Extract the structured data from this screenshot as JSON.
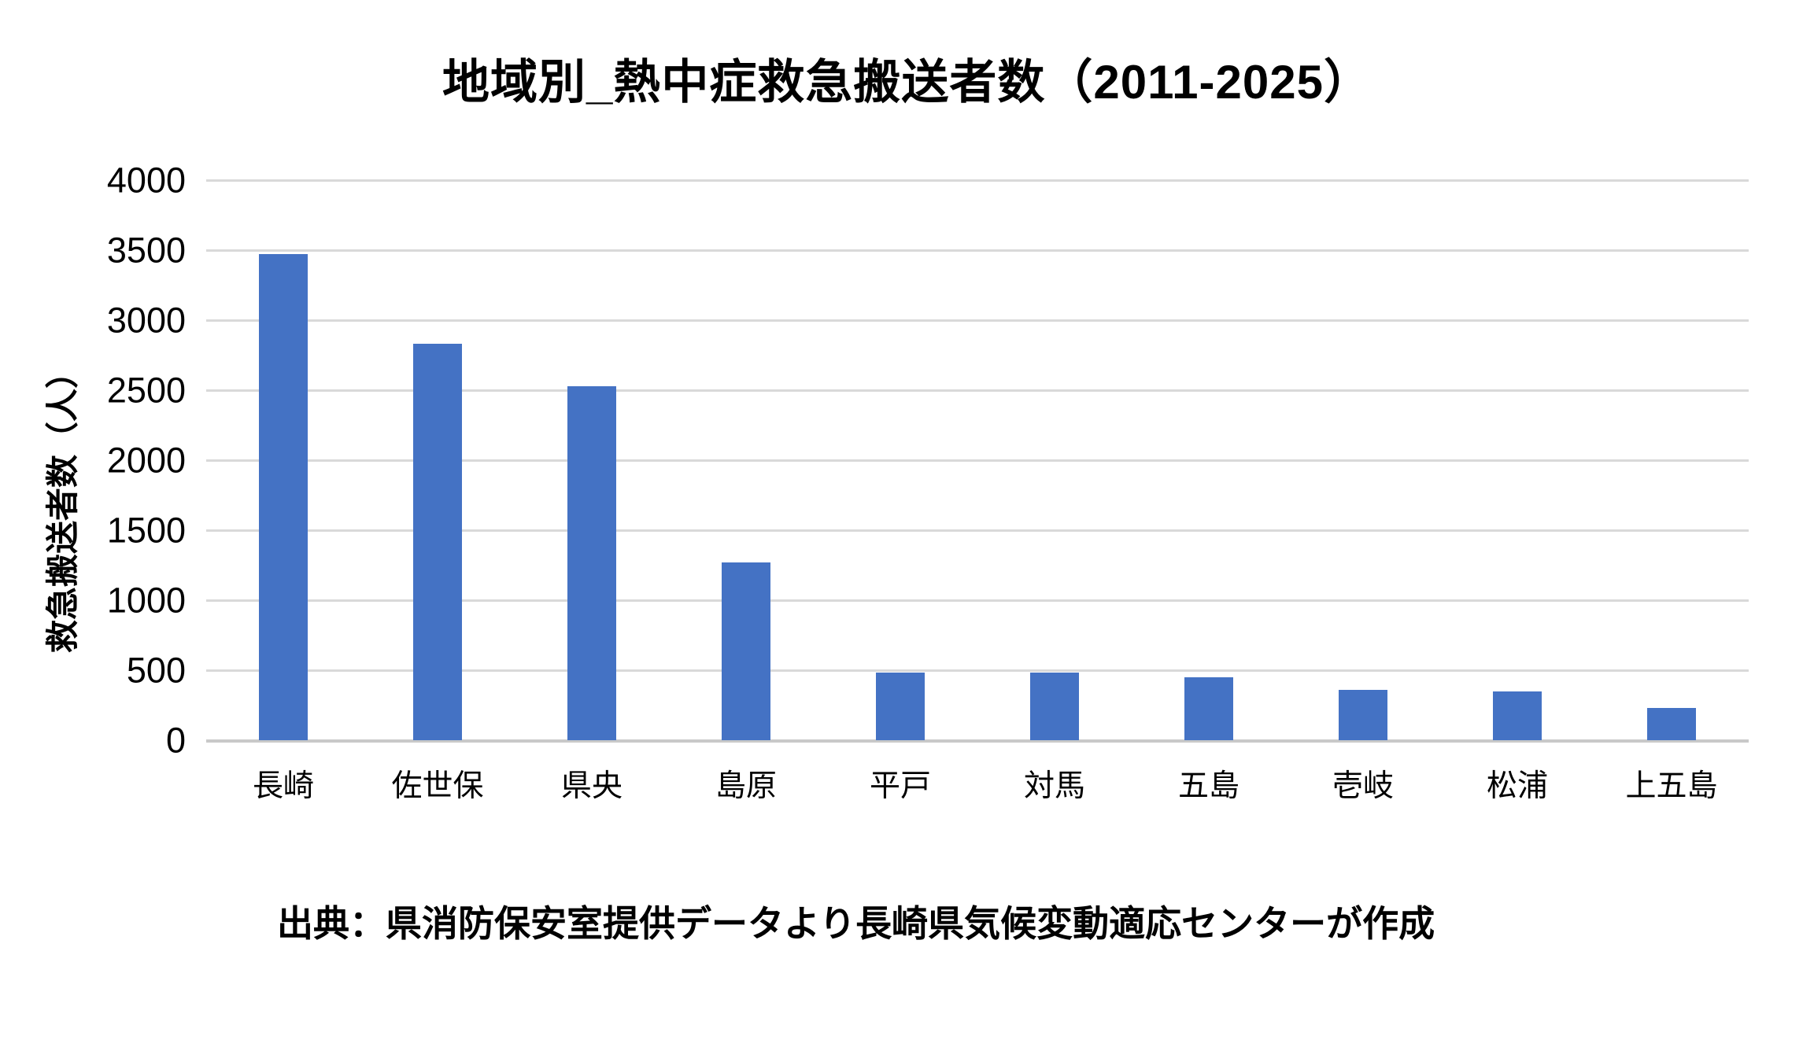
{
  "chart_data": {
    "type": "bar",
    "title": "地域別_熱中症救急搬送者数（2011-2025）",
    "ylabel": "救急搬送者数（人）",
    "xlabel": "",
    "categories": [
      "長崎",
      "佐世保",
      "県央",
      "島原",
      "平戸",
      "対馬",
      "五島",
      "壱岐",
      "松浦",
      "上五島"
    ],
    "values": [
      3470,
      2830,
      2530,
      1270,
      485,
      485,
      450,
      360,
      350,
      230
    ],
    "ylim": [
      0,
      4000
    ],
    "yticks": [
      0,
      500,
      1000,
      1500,
      2000,
      2500,
      3000,
      3500,
      4000
    ],
    "grid": true,
    "legend": false,
    "bar_color": "#4472c4",
    "gridline_color": "#d9d9d9",
    "axis_line_color": "#c9c9c9",
    "source_note": "出典：県消防保安室提供データより長崎県気候変動適応センターが作成"
  }
}
